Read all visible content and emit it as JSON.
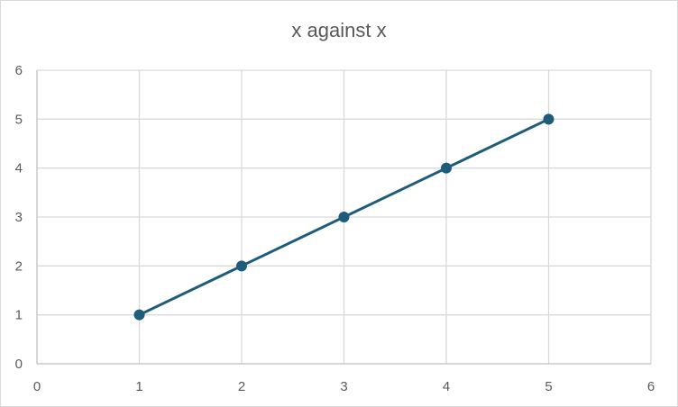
{
  "chart_data": {
    "type": "line",
    "title": "x against x",
    "xlabel": "",
    "ylabel": "",
    "x": [
      1,
      2,
      3,
      4,
      5
    ],
    "series": [
      {
        "values": [
          1,
          2,
          3,
          4,
          5
        ]
      }
    ],
    "xlim": [
      0,
      6
    ],
    "ylim": [
      0,
      6
    ],
    "xticks": [
      0,
      1,
      2,
      3,
      4,
      5,
      6
    ],
    "yticks": [
      0,
      1,
      2,
      3,
      4,
      5,
      6
    ],
    "grid": true,
    "legend": "none",
    "colors": {
      "series": "#1f5c7a",
      "grid": "#d9d9d9",
      "text": "#595959"
    }
  }
}
